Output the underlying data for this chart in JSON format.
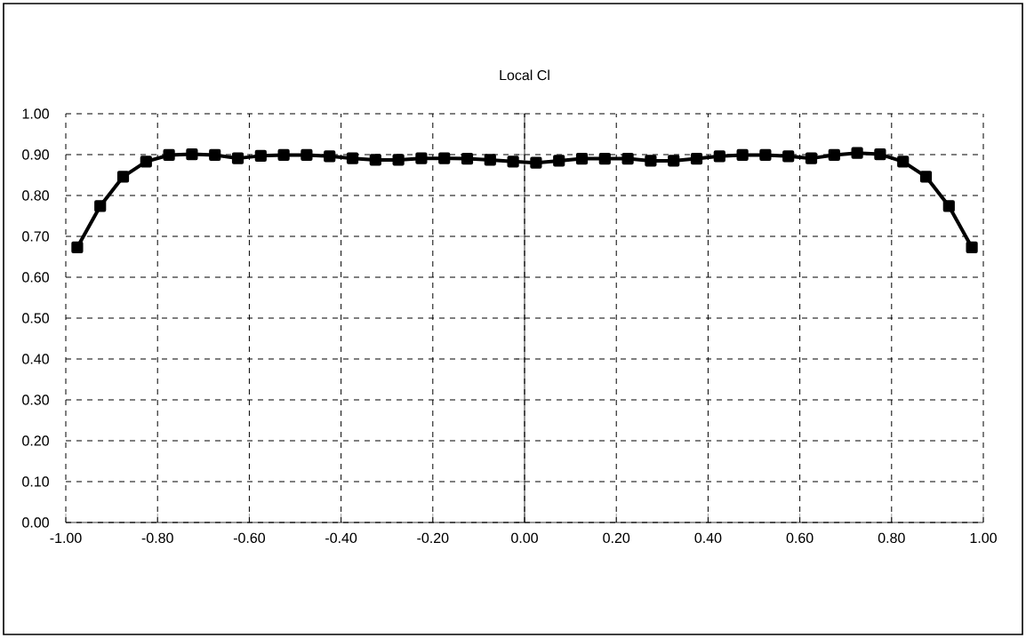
{
  "chart_data": {
    "type": "line",
    "title": "Local Cl",
    "x": [
      -0.975,
      -0.925,
      -0.875,
      -0.825,
      -0.775,
      -0.725,
      -0.675,
      -0.625,
      -0.575,
      -0.525,
      -0.475,
      -0.425,
      -0.375,
      -0.325,
      -0.275,
      -0.225,
      -0.175,
      -0.125,
      -0.075,
      -0.025,
      0.025,
      0.075,
      0.125,
      0.175,
      0.225,
      0.275,
      0.325,
      0.375,
      0.425,
      0.475,
      0.525,
      0.575,
      0.625,
      0.675,
      0.725,
      0.775,
      0.825,
      0.875,
      0.925,
      0.975
    ],
    "series": [
      {
        "color": "#000000",
        "values": [
          0.673,
          0.774,
          0.846,
          0.883,
          0.899,
          0.901,
          0.899,
          0.891,
          0.897,
          0.899,
          0.899,
          0.896,
          0.891,
          0.887,
          0.887,
          0.891,
          0.891,
          0.89,
          0.887,
          0.883,
          0.88,
          0.885,
          0.89,
          0.89,
          0.89,
          0.885,
          0.885,
          0.89,
          0.896,
          0.899,
          0.899,
          0.896,
          0.891,
          0.899,
          0.904,
          0.901,
          0.883,
          0.846,
          0.774,
          0.673
        ]
      }
    ],
    "xlim": [
      -1,
      1
    ],
    "ylim": [
      0,
      1
    ],
    "xticks": [
      {
        "value": -1,
        "label": "-1.00"
      },
      {
        "value": -0.8,
        "label": "-0.80"
      },
      {
        "value": -0.6,
        "label": "-0.60"
      },
      {
        "value": -0.4,
        "label": "-0.40"
      },
      {
        "value": -0.2,
        "label": "-0.20"
      },
      {
        "value": 0,
        "label": "0.00"
      },
      {
        "value": 0.2,
        "label": "0.20"
      },
      {
        "value": 0.4,
        "label": "0.40"
      },
      {
        "value": 0.6,
        "label": "0.60"
      },
      {
        "value": 0.8,
        "label": "0.80"
      },
      {
        "value": 1,
        "label": "1.00"
      }
    ],
    "yticks": [
      {
        "value": 0,
        "label": "0.00"
      },
      {
        "value": 0.1,
        "label": "0.10"
      },
      {
        "value": 0.2,
        "label": "0.20"
      },
      {
        "value": 0.3,
        "label": "0.30"
      },
      {
        "value": 0.4,
        "label": "0.40"
      },
      {
        "value": 0.5,
        "label": "0.50"
      },
      {
        "value": 0.6,
        "label": "0.60"
      },
      {
        "value": 0.7,
        "label": "0.70"
      },
      {
        "value": 0.8,
        "label": "0.80"
      },
      {
        "value": 0.9,
        "label": "0.90"
      },
      {
        "value": 1,
        "label": "1.00"
      }
    ],
    "grid": true,
    "legend": false,
    "marker": "square",
    "line_style": "solid"
  }
}
